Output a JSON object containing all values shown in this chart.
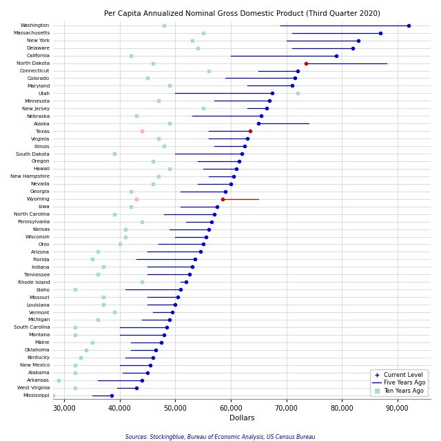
{
  "title": "Per Capita Annualized Nominal Gross Domestic Product (Third Quarter 2020)",
  "xlabel": "Dollars",
  "source": "Sources: Stockingblue, Bureau of Economic Analysis, US Census Bureau",
  "states": [
    "Washington",
    "Massachusetts",
    "New York",
    "Delaware",
    "California",
    "North Dakota",
    "Connecticut",
    "Colorado",
    "Maryland",
    "Utah",
    "Minnesota",
    "New Jersey",
    "Nebraska",
    "Alaska",
    "Texas",
    "Virginia",
    "Illinois",
    "South Dakota",
    "Oregon",
    "Hawaii",
    "New Hampshire",
    "Nevada",
    "Georgia",
    "Wyoming",
    "Iowa",
    "North Carolina",
    "Pennsylvania",
    "Kansas",
    "Wisconsin",
    "Ohio",
    "Arizona",
    "Florida",
    "Indiana",
    "Tennessee",
    "Rhode Island",
    "Idaho",
    "Missouri",
    "Louisiana",
    "Vermont",
    "Michigan",
    "South Carolina",
    "Montana",
    "Maine",
    "Oklahoma",
    "Kentucky",
    "New Mexico",
    "Alabama",
    "Arkansas",
    "West Virginia",
    "Mississippi"
  ],
  "current": [
    92000,
    87000,
    83000,
    82000,
    79000,
    73500,
    72000,
    71500,
    71000,
    67500,
    67000,
    66500,
    65500,
    65000,
    63500,
    63000,
    62500,
    62000,
    61500,
    61000,
    60500,
    60000,
    59000,
    58500,
    57500,
    57000,
    56500,
    56000,
    55500,
    55000,
    54500,
    53500,
    53000,
    52500,
    52000,
    51000,
    50500,
    50000,
    49500,
    49000,
    48500,
    48000,
    47500,
    46500,
    46000,
    45500,
    45000,
    44000,
    43000,
    38500
  ],
  "five_years_ago": [
    69000,
    71000,
    70000,
    71000,
    60000,
    88000,
    65000,
    59000,
    63000,
    50000,
    57000,
    63000,
    53000,
    74000,
    56000,
    56000,
    57000,
    50000,
    54000,
    55000,
    56000,
    54000,
    51000,
    65000,
    51000,
    48000,
    52000,
    49000,
    50000,
    47000,
    45000,
    43000,
    45000,
    45000,
    51000,
    41000,
    45000,
    45000,
    46000,
    44000,
    40000,
    40000,
    42000,
    42000,
    41000,
    40000,
    40500,
    36000,
    39500,
    35000
  ],
  "ten_years_ago": [
    48000,
    55000,
    53000,
    54000,
    42000,
    46000,
    56000,
    45000,
    49000,
    72000,
    47000,
    55000,
    43000,
    49000,
    44000,
    47000,
    48000,
    39000,
    46000,
    49000,
    47000,
    46000,
    42000,
    43000,
    42000,
    39000,
    44000,
    41000,
    41000,
    40000,
    36000,
    35000,
    37000,
    36000,
    44000,
    32000,
    37000,
    37000,
    39000,
    36000,
    32000,
    32000,
    35000,
    34000,
    33000,
    32000,
    32000,
    29000,
    32000,
    28000
  ],
  "current_is_red": [
    false,
    false,
    false,
    false,
    false,
    true,
    false,
    false,
    false,
    false,
    false,
    false,
    false,
    false,
    true,
    false,
    false,
    false,
    false,
    false,
    false,
    false,
    false,
    true,
    false,
    false,
    false,
    false,
    false,
    false,
    false,
    false,
    false,
    false,
    false,
    false,
    false,
    false,
    false,
    false,
    false,
    false,
    false,
    false,
    false,
    false,
    false,
    false,
    false,
    false
  ],
  "five_is_red": [
    false,
    false,
    false,
    false,
    false,
    false,
    false,
    false,
    false,
    false,
    false,
    false,
    false,
    false,
    false,
    false,
    false,
    false,
    false,
    false,
    false,
    false,
    false,
    true,
    false,
    false,
    false,
    false,
    false,
    false,
    false,
    false,
    false,
    false,
    false,
    false,
    false,
    false,
    false,
    false,
    false,
    false,
    false,
    false,
    false,
    false,
    false,
    false,
    false,
    false
  ],
  "ten_is_pink": [
    false,
    false,
    false,
    false,
    false,
    false,
    false,
    false,
    false,
    false,
    false,
    false,
    false,
    false,
    true,
    false,
    false,
    false,
    false,
    false,
    false,
    false,
    false,
    true,
    false,
    false,
    false,
    false,
    false,
    false,
    false,
    false,
    false,
    false,
    false,
    false,
    false,
    false,
    false,
    false,
    false,
    false,
    false,
    false,
    false,
    false,
    false,
    false,
    false,
    false
  ],
  "dot_color": "#0000CD",
  "line_color": "#0000CD",
  "square_color": "#a8d8d8",
  "red_color": "#CC0000",
  "pink_color": "#FFB3B3",
  "xlim": [
    28000,
    96000
  ],
  "xticks": [
    30000,
    40000,
    50000,
    60000,
    70000,
    80000,
    90000
  ],
  "xtick_labels": [
    "30,000",
    "40,000",
    "50,000",
    "60,000",
    "70,000",
    "80,000",
    "90,000"
  ]
}
